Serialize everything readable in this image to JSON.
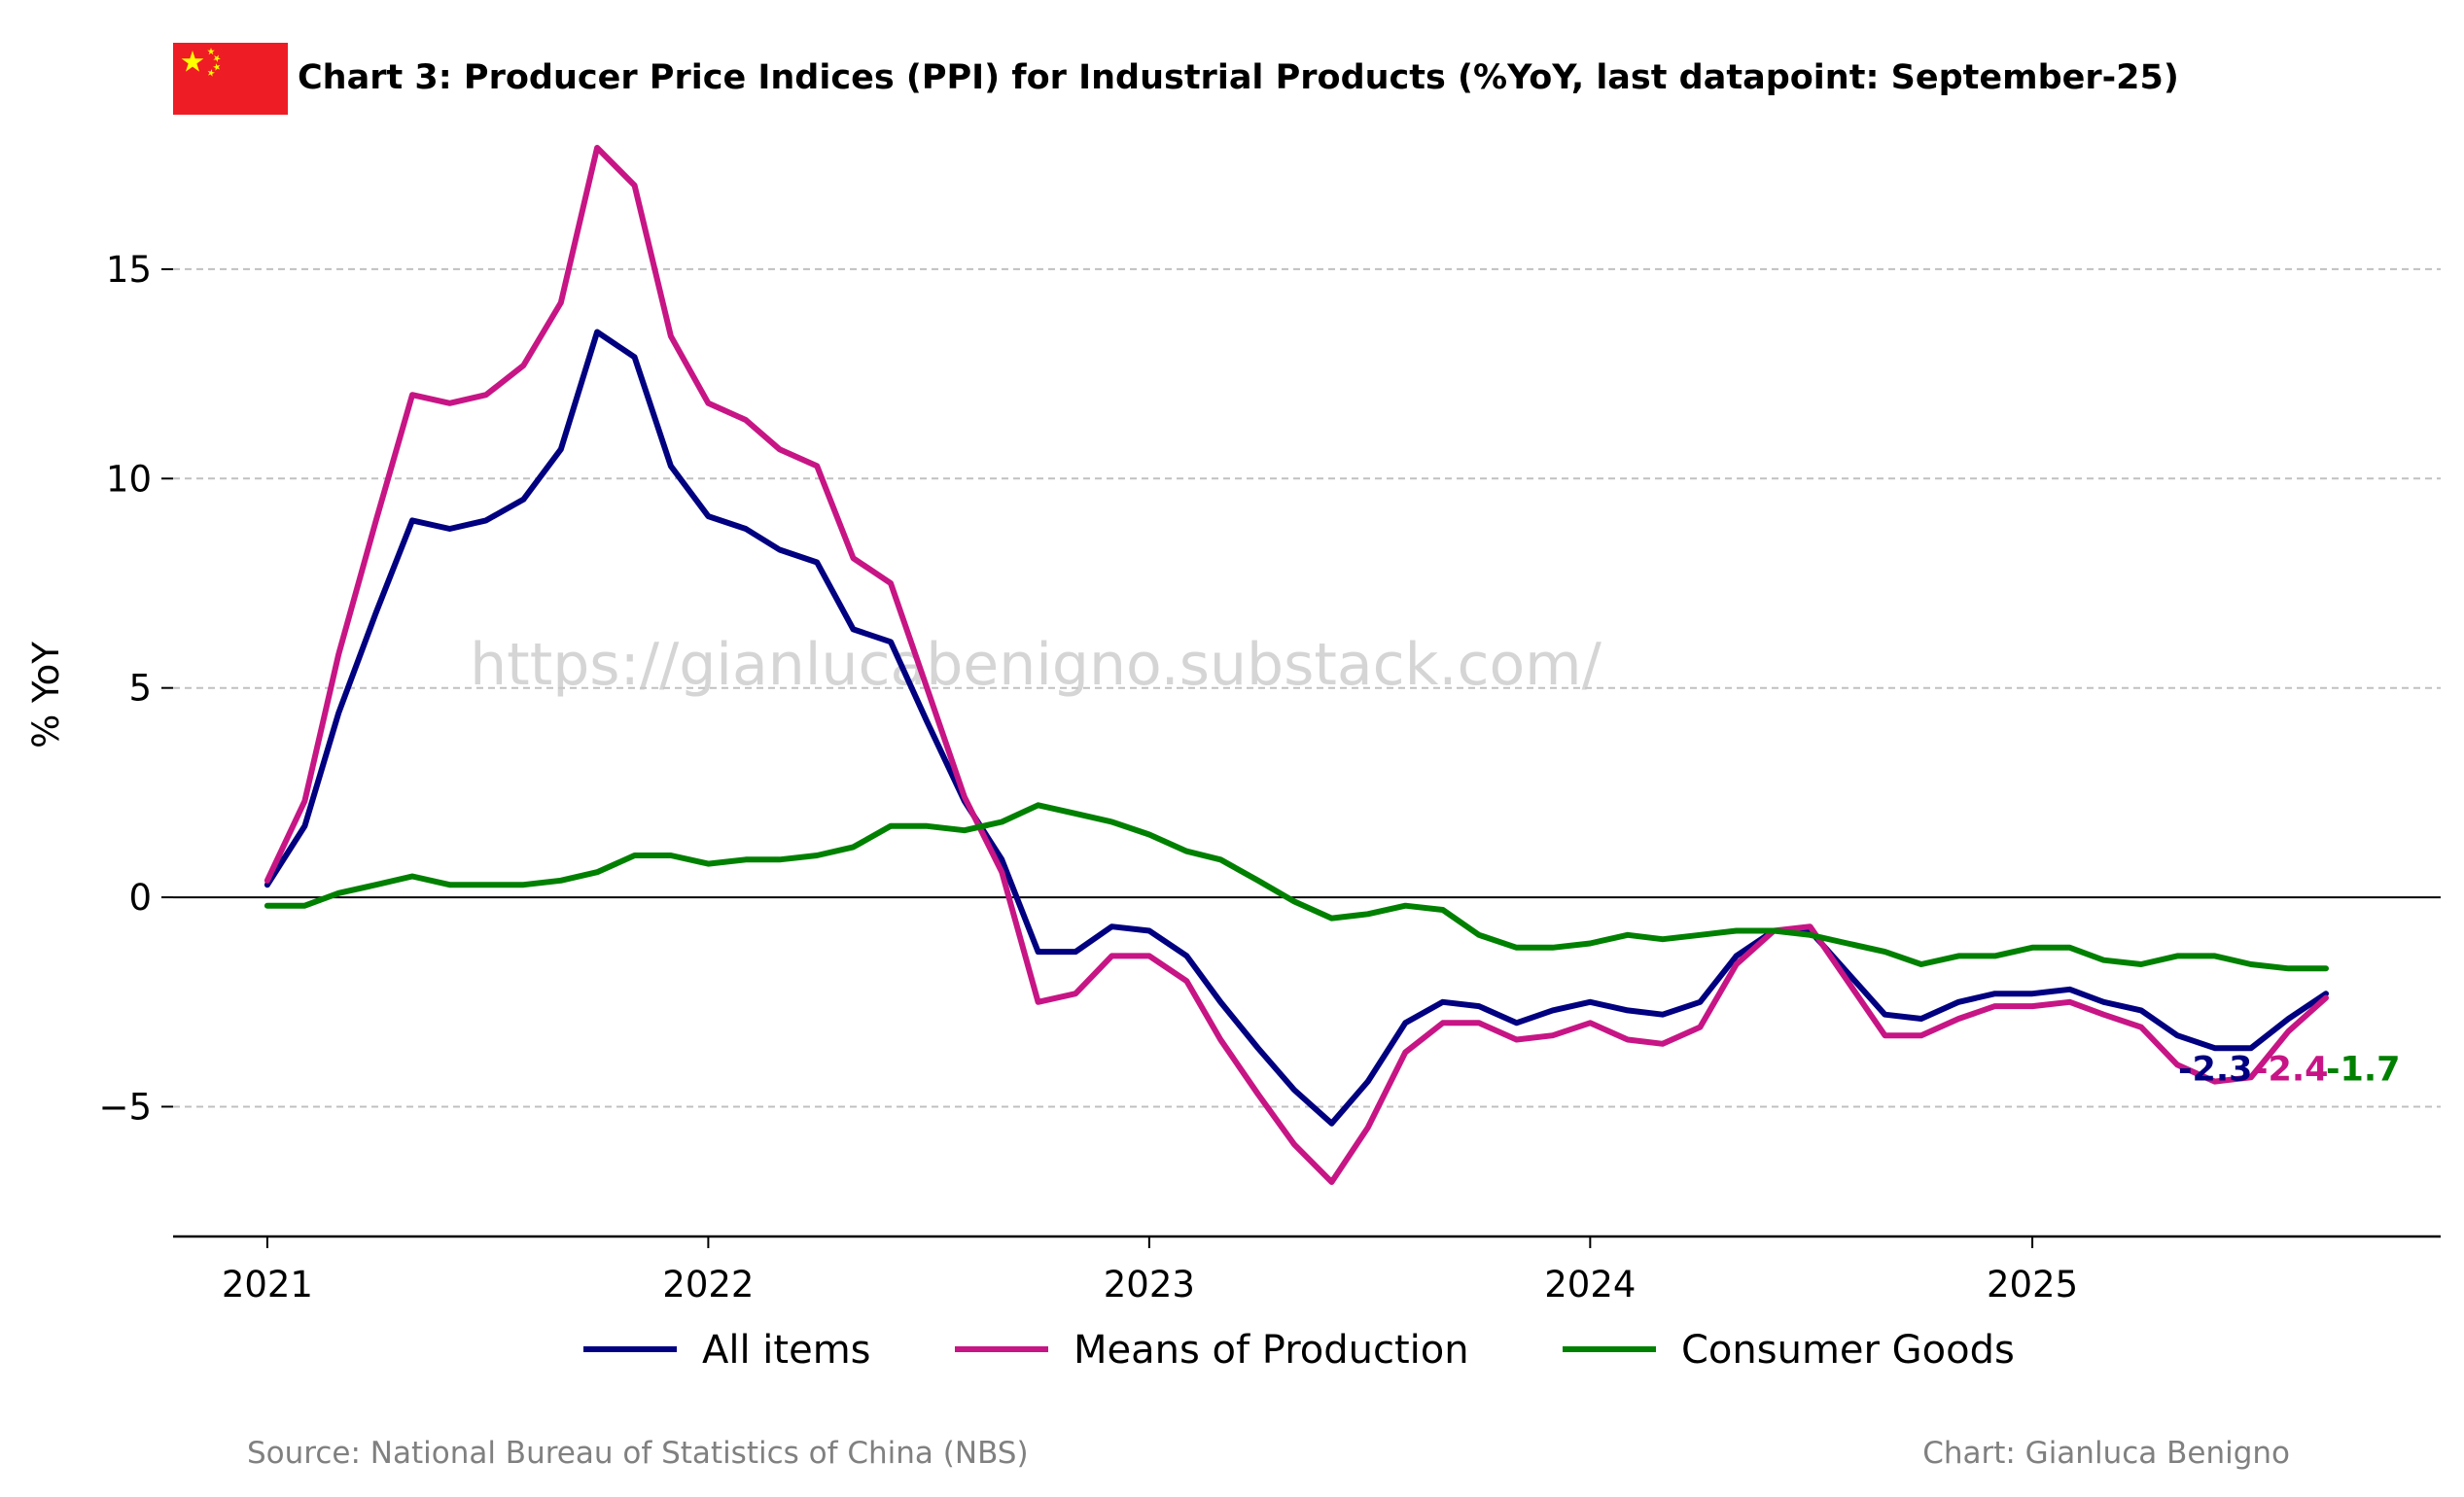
{
  "chart_data": {
    "type": "line",
    "title": "Chart 3: Producer Price Indices (PPI) for Industrial Products (%YoY, last datapoint: September-25)",
    "ylabel": "% YoY",
    "xlabel": "",
    "ylim": [
      -8.1,
      19.2
    ],
    "xlim": [
      "2020-10-15",
      "2025-12-05"
    ],
    "yticks": [
      -5,
      0,
      5,
      10,
      15
    ],
    "ytick_labels": [
      "−5",
      "0",
      "5",
      "10",
      "15"
    ],
    "xticks": [
      "2021-01",
      "2022-01",
      "2023-01",
      "2024-01",
      "2025-01"
    ],
    "xtick_labels": [
      "2021",
      "2022",
      "2023",
      "2024",
      "2025"
    ],
    "grid": "horizontal dashed",
    "zero_line": true,
    "legend_position": "bottom-center",
    "x": [
      "2021-01",
      "2021-02",
      "2021-03",
      "2021-04",
      "2021-05",
      "2021-06",
      "2021-07",
      "2021-08",
      "2021-09",
      "2021-10",
      "2021-11",
      "2021-12",
      "2022-01",
      "2022-02",
      "2022-03",
      "2022-04",
      "2022-05",
      "2022-06",
      "2022-07",
      "2022-08",
      "2022-09",
      "2022-10",
      "2022-11",
      "2022-12",
      "2023-01",
      "2023-02",
      "2023-03",
      "2023-04",
      "2023-05",
      "2023-06",
      "2023-07",
      "2023-08",
      "2023-09",
      "2023-10",
      "2023-11",
      "2023-12",
      "2024-01",
      "2024-02",
      "2024-03",
      "2024-04",
      "2024-05",
      "2024-06",
      "2024-07",
      "2024-08",
      "2024-09",
      "2024-10",
      "2024-11",
      "2024-12",
      "2025-01",
      "2025-02",
      "2025-03",
      "2025-04",
      "2025-05",
      "2025-06",
      "2025-07",
      "2025-08",
      "2025-09"
    ],
    "series": [
      {
        "name": "All items",
        "color": "#000080",
        "end_label": "-2.3",
        "values": [
          0.3,
          1.7,
          4.4,
          6.8,
          9.0,
          8.8,
          9.0,
          9.5,
          10.7,
          13.5,
          12.9,
          10.3,
          9.1,
          8.8,
          8.3,
          8.0,
          6.4,
          6.1,
          4.2,
          2.3,
          0.9,
          -1.3,
          -1.3,
          -0.7,
          -0.8,
          -1.4,
          -2.5,
          -3.6,
          -4.6,
          -5.4,
          -4.4,
          -3.0,
          -2.5,
          -2.6,
          -3.0,
          -2.7,
          -2.5,
          -2.7,
          -2.8,
          -2.5,
          -1.4,
          -0.8,
          -0.8,
          -1.8,
          -2.8,
          -2.9,
          -2.5,
          -2.3,
          -2.3,
          -2.2,
          -2.5,
          -2.7,
          -3.3,
          -3.6,
          -3.6,
          -2.9,
          -2.3
        ]
      },
      {
        "name": "Means of Production",
        "color": "#C71585",
        "end_label": "-2.4",
        "values": [
          0.4,
          2.3,
          5.8,
          9.0,
          12.0,
          11.8,
          12.0,
          12.7,
          14.2,
          17.9,
          17.0,
          13.4,
          11.8,
          11.4,
          10.7,
          10.3,
          8.1,
          7.5,
          5.0,
          2.4,
          0.6,
          -2.5,
          -2.3,
          -1.4,
          -1.4,
          -2.0,
          -3.4,
          -4.7,
          -5.9,
          -6.8,
          -5.5,
          -3.7,
          -3.0,
          -3.0,
          -3.4,
          -3.3,
          -3.0,
          -3.4,
          -3.5,
          -3.1,
          -1.6,
          -0.8,
          -0.7,
          -2.0,
          -3.3,
          -3.3,
          -2.9,
          -2.6,
          -2.6,
          -2.5,
          -2.8,
          -3.1,
          -4.0,
          -4.4,
          -4.3,
          -3.2,
          -2.4
        ]
      },
      {
        "name": "Consumer Goods",
        "color": "#008000",
        "end_label": "-1.7",
        "values": [
          -0.2,
          -0.2,
          0.1,
          0.3,
          0.5,
          0.3,
          0.3,
          0.3,
          0.4,
          0.6,
          1.0,
          1.0,
          0.8,
          0.9,
          0.9,
          1.0,
          1.2,
          1.7,
          1.7,
          1.6,
          1.8,
          2.2,
          2.0,
          1.8,
          1.5,
          1.1,
          0.9,
          0.4,
          -0.1,
          -0.5,
          -0.4,
          -0.2,
          -0.3,
          -0.9,
          -1.2,
          -1.2,
          -1.1,
          -0.9,
          -1.0,
          -0.9,
          -0.8,
          -0.8,
          -0.9,
          -1.1,
          -1.3,
          -1.6,
          -1.4,
          -1.4,
          -1.2,
          -1.2,
          -1.5,
          -1.6,
          -1.4,
          -1.4,
          -1.6,
          -1.7,
          -1.7
        ]
      }
    ],
    "watermark": "https://gianlucabenigno.substack.com/",
    "source": "Source: National Bureau of Statistics of China (NBS)",
    "credit": "Chart: Gianluca Benigno"
  },
  "flag": {
    "icon": "china-flag-icon",
    "red": "#EE1C25",
    "yellow": "#FFFF00"
  }
}
